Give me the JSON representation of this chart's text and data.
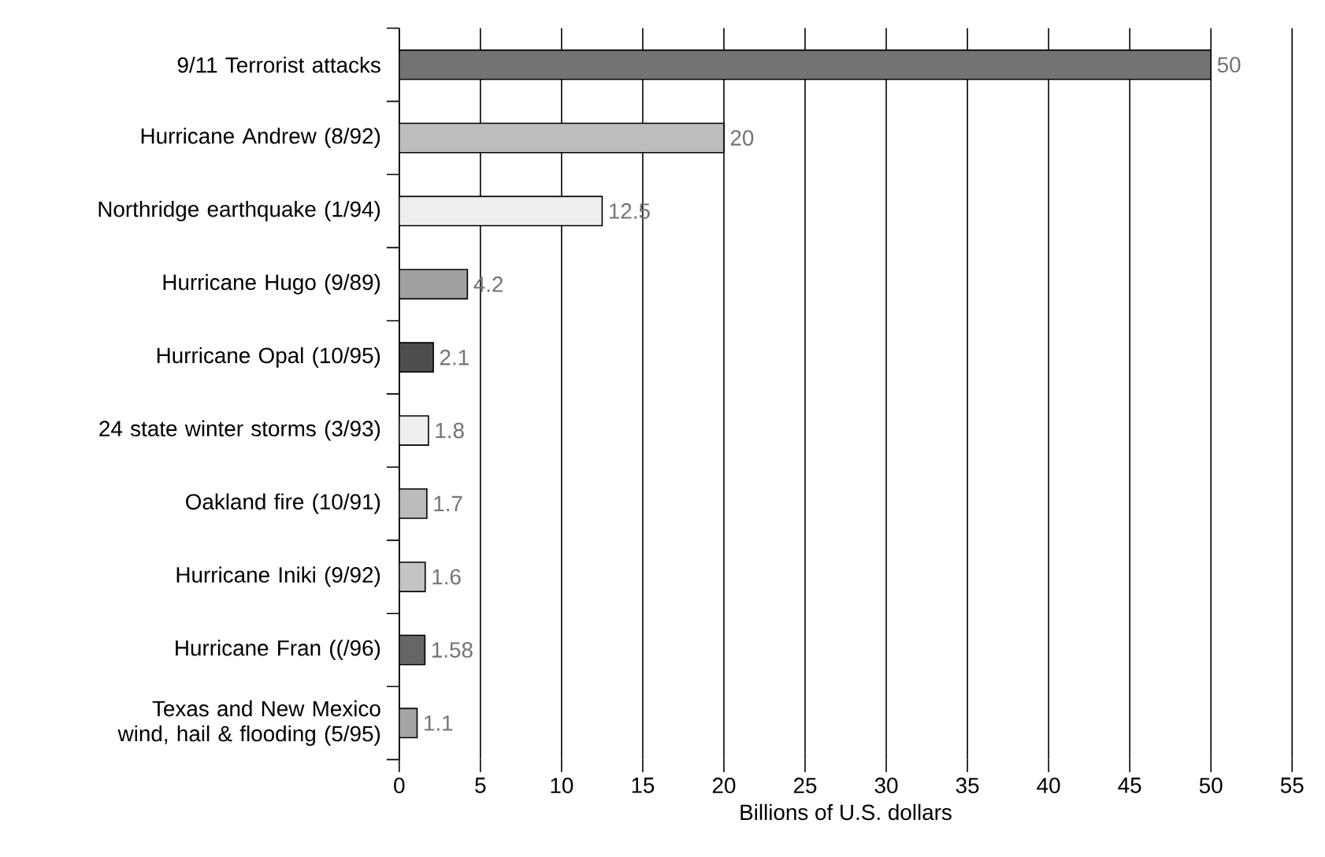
{
  "chart_data": {
    "type": "bar",
    "orientation": "horizontal",
    "xlabel": "Billions of U.S. dollars",
    "categories": [
      "9/11 Terrorist attacks",
      "Hurricane Andrew (8/92)",
      "Northridge earthquake (1/94)",
      "Hurricane Hugo (9/89)",
      "Hurricane Opal (10/95)",
      "24 state winter storms (3/93)",
      "Oakland fire (10/91)",
      "Hurricane Iniki (9/92)",
      "Hurricane Fran ((/96)",
      "Texas and New Mexico wind, hail & flooding (5/95)"
    ],
    "values": [
      50,
      20,
      12.5,
      4.2,
      2.1,
      1.8,
      1.7,
      1.6,
      1.58,
      1.1
    ],
    "colors": [
      "#737373",
      "#bdbdbd",
      "#eeeeee",
      "#a0a0a0",
      "#4d4d4d",
      "#eeeeee",
      "#bbbbbb",
      "#c4c4c4",
      "#666666",
      "#a5a5a5"
    ],
    "xlim": [
      0,
      55
    ],
    "xticks": [
      0,
      5,
      10,
      15,
      20,
      25,
      30,
      35,
      40,
      45,
      50,
      55
    ],
    "grid": "x",
    "data_labels": true
  }
}
